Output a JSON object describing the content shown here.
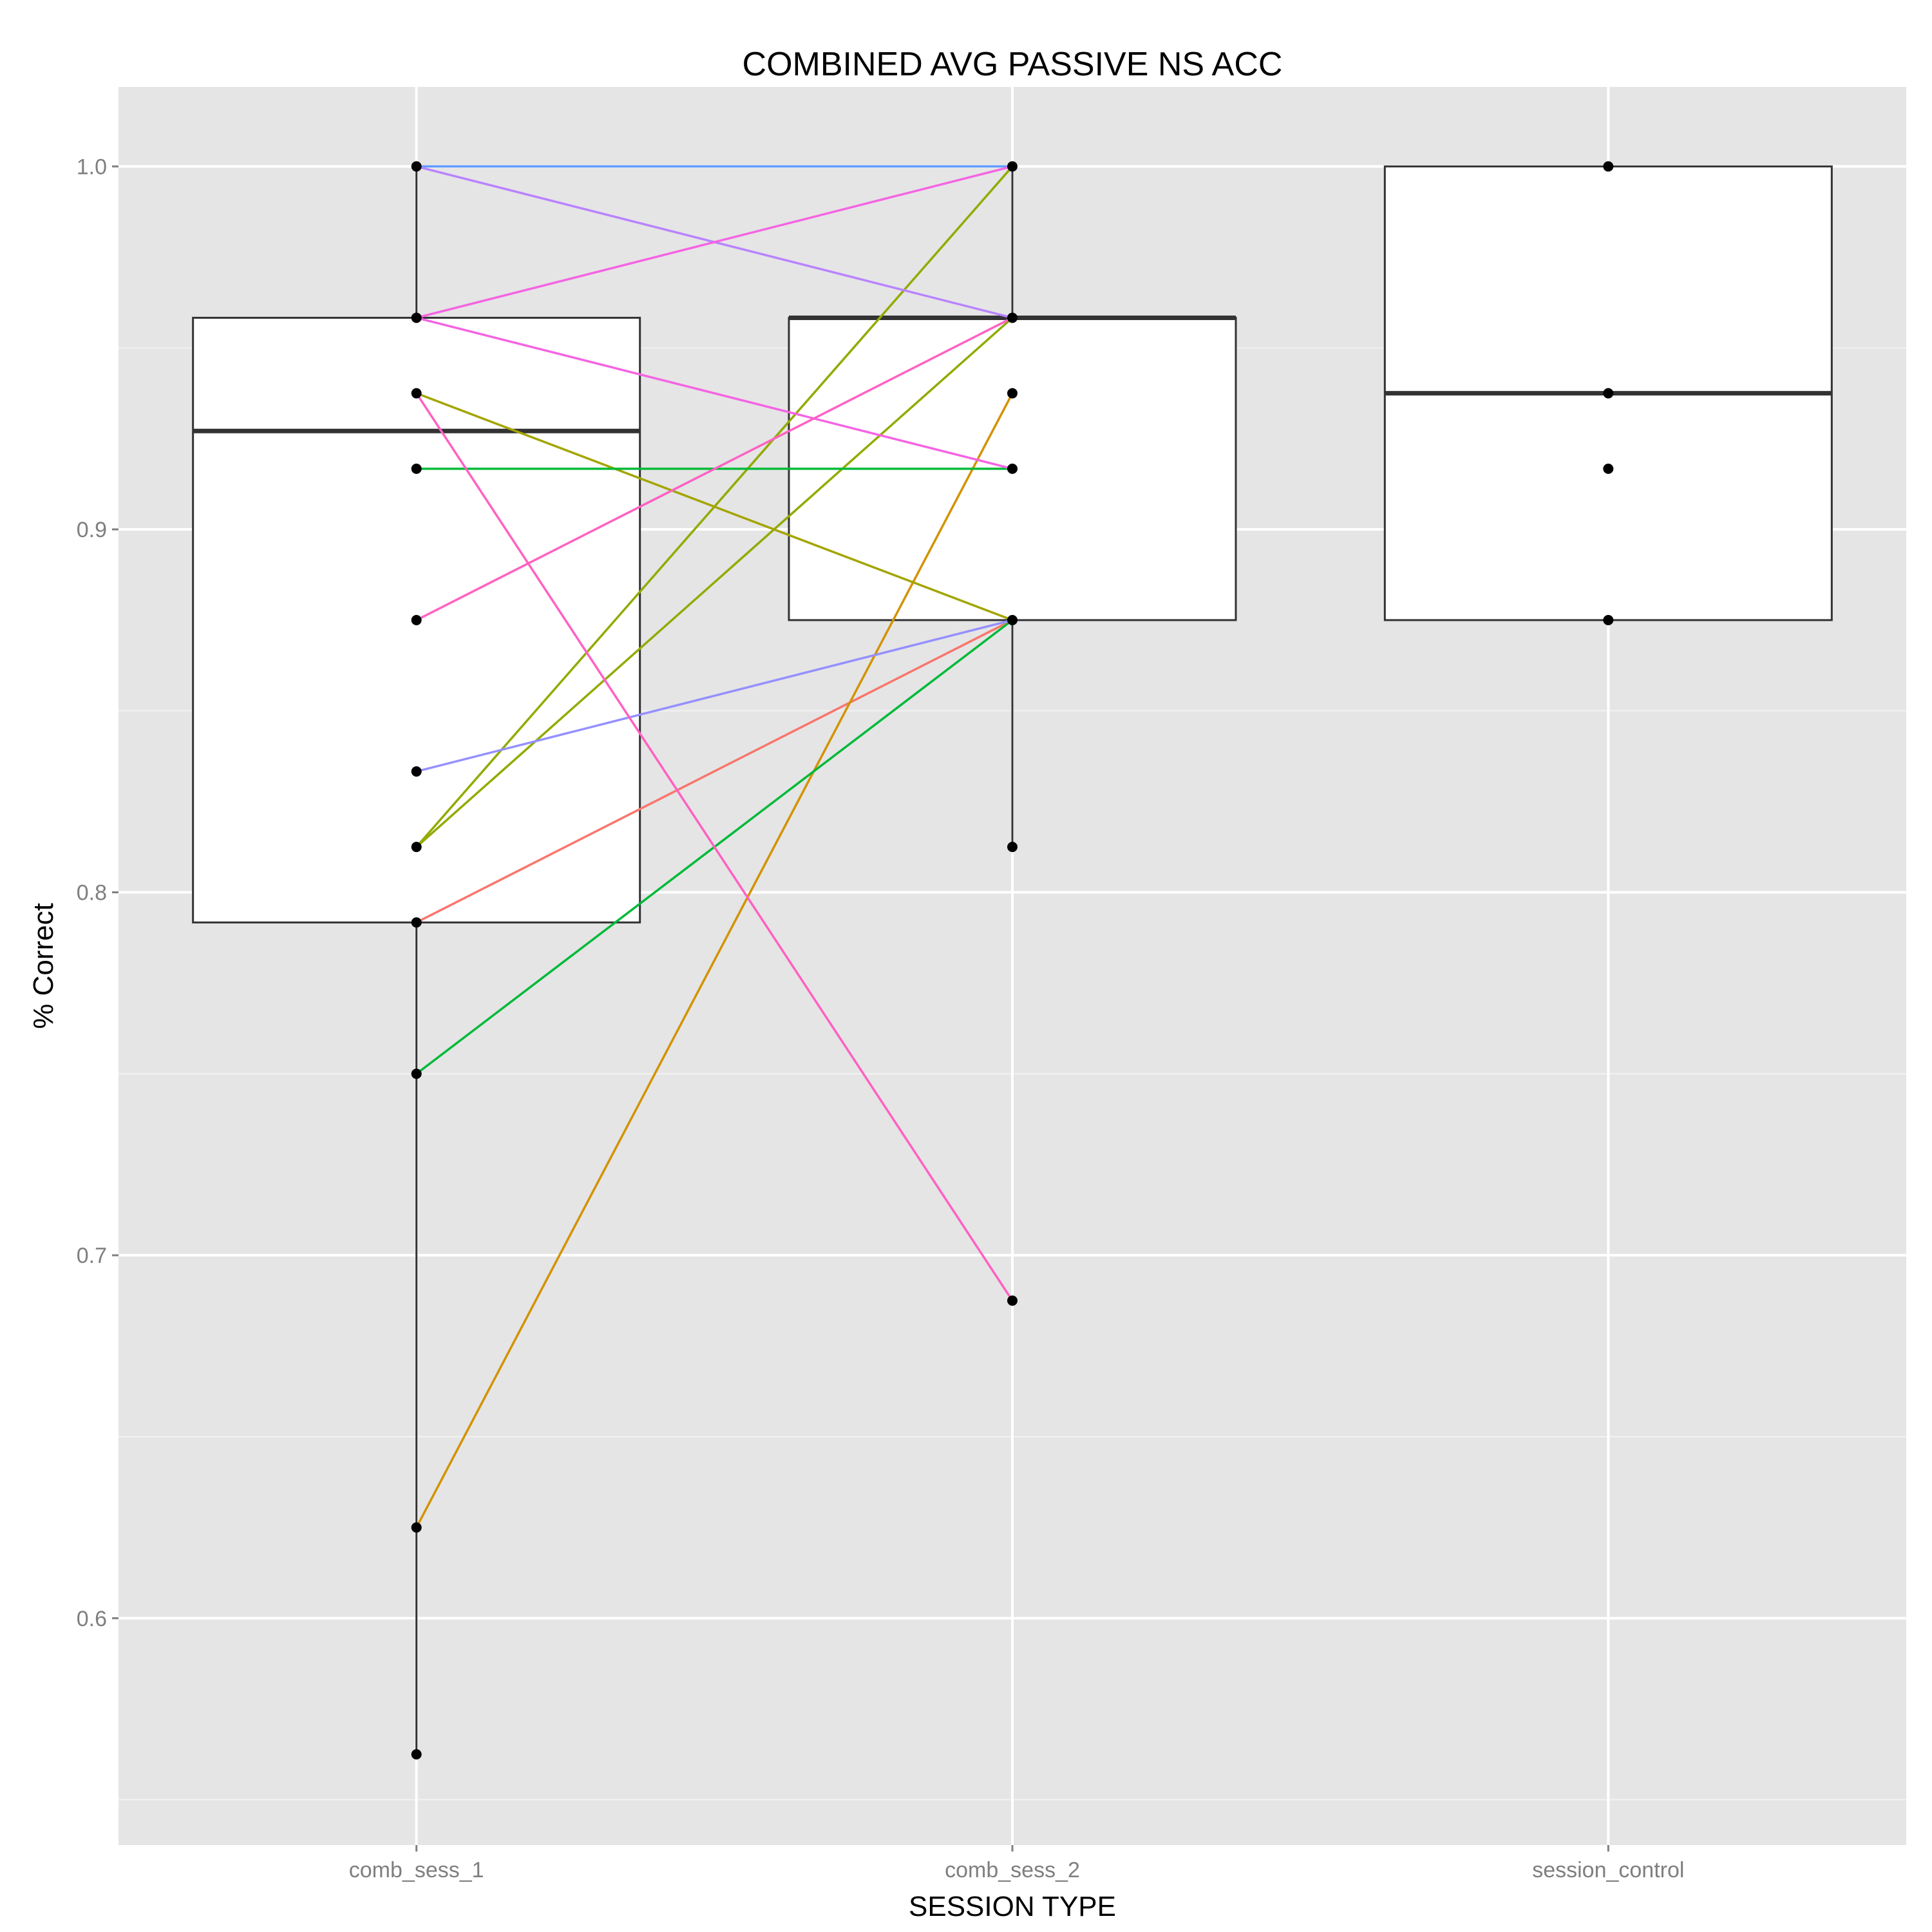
{
  "chart_data": {
    "type": "box",
    "title": "COMBINED AVG PASSIVE NS ACC",
    "xlabel": "SESSION TYPE",
    "ylabel": "% Correct",
    "categories": [
      "comb_sess_1",
      "comb_sess_2",
      "session_control"
    ],
    "ylim": [
      0.5375,
      1.0219
    ],
    "yticks": [
      0.6,
      0.7,
      0.8,
      0.9,
      1.0
    ],
    "ytick_labels": [
      "0.6",
      "0.7",
      "0.8",
      "0.9",
      "1.0"
    ],
    "grid": true,
    "panel_background": "#e5e5e5",
    "boxes": [
      {
        "category": "comb_sess_1",
        "lower_whisker": 0.5625,
        "q1": 0.7917,
        "median": 0.9271,
        "q3": 0.9583,
        "upper_whisker": 1.0
      },
      {
        "category": "comb_sess_2",
        "lower_whisker": 0.8125,
        "q1": 0.875,
        "median": 0.9583,
        "q3": 0.9583,
        "upper_whisker": 1.0
      },
      {
        "category": "session_control",
        "lower_whisker": 0.875,
        "q1": 0.875,
        "median": 0.9375,
        "q3": 1.0,
        "upper_whisker": 1.0
      }
    ],
    "points": [
      {
        "category": "comb_sess_1",
        "values": [
          1.0,
          0.9583,
          0.9375,
          0.9167,
          0.875,
          0.8333,
          0.8125,
          0.7917,
          0.75,
          0.625,
          0.5625
        ]
      },
      {
        "category": "comb_sess_2",
        "values": [
          1.0,
          0.9583,
          0.9375,
          0.9167,
          0.875,
          0.8125,
          0.6875
        ]
      },
      {
        "category": "session_control",
        "values": [
          1.0,
          0.9375,
          0.9167,
          0.875
        ]
      }
    ],
    "lines": [
      {
        "color": "#F8766D",
        "values": [
          0.7917,
          0.875
        ]
      },
      {
        "color": "#D39200",
        "values": [
          0.625,
          0.9375
        ]
      },
      {
        "color": "#93AA00",
        "values": [
          0.8125,
          1.0
        ]
      },
      {
        "color": "#93AA00",
        "values": [
          0.8125,
          0.9583
        ]
      },
      {
        "color": "#A3A500",
        "values": [
          0.9375,
          0.875
        ]
      },
      {
        "color": "#00BA38",
        "values": [
          0.9167,
          0.9167
        ]
      },
      {
        "color": "#00BA38",
        "values": [
          0.75,
          0.875
        ]
      },
      {
        "color": "#619CFF",
        "values": [
          1.0,
          1.0
        ]
      },
      {
        "color": "#9590FF",
        "values": [
          0.8333,
          0.875
        ]
      },
      {
        "color": "#B983FF",
        "values": [
          1.0,
          0.9583
        ]
      },
      {
        "color": "#F564E3",
        "values": [
          0.9583,
          1.0
        ]
      },
      {
        "color": "#F564E3",
        "values": [
          0.9583,
          0.9167
        ]
      },
      {
        "color": "#FF61C3",
        "values": [
          0.875,
          0.9583
        ]
      },
      {
        "color": "#FF61C3",
        "values": [
          0.9375,
          0.6875
        ]
      }
    ]
  }
}
